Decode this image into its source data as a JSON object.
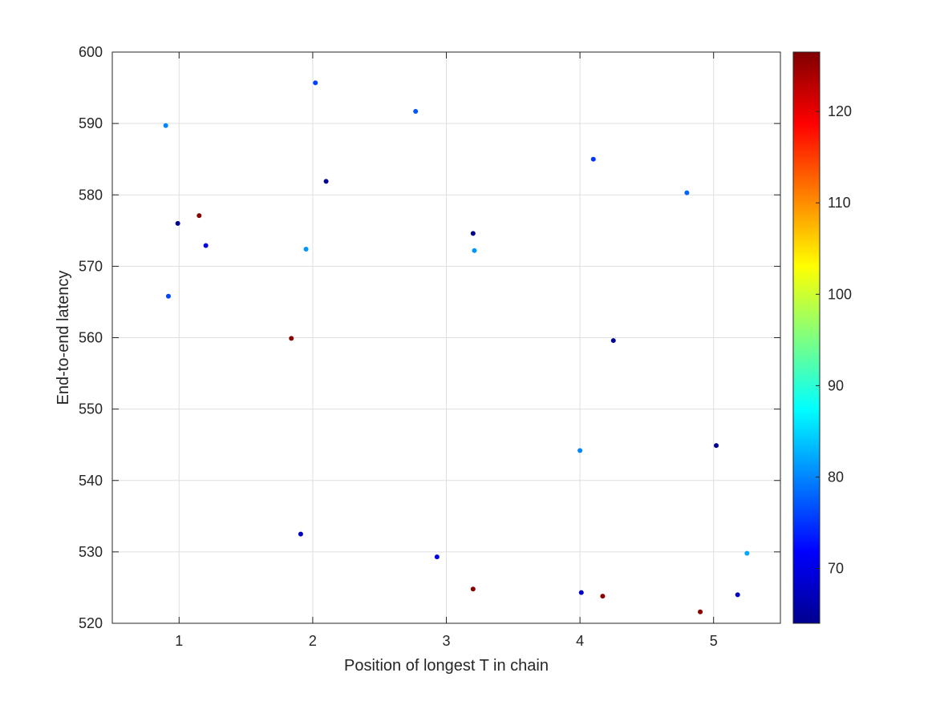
{
  "chart_data": {
    "type": "scatter",
    "title": "",
    "xlabel": "Position of longest T in chain",
    "ylabel": "End-to-end latency",
    "xlim": [
      0.5,
      5.5
    ],
    "ylim": [
      520,
      600
    ],
    "xticks": [
      1,
      2,
      3,
      4,
      5
    ],
    "yticks": [
      520,
      530,
      540,
      550,
      560,
      570,
      580,
      590,
      600
    ],
    "grid": true,
    "colorbar": {
      "colormap": "jet",
      "clim": [
        64,
        126.5
      ],
      "ticks": [
        70,
        80,
        90,
        100,
        110,
        120
      ]
    },
    "points": [
      {
        "x": 0.9,
        "y": 589.7,
        "c": 80
      },
      {
        "x": 0.92,
        "y": 565.8,
        "c": 76
      },
      {
        "x": 0.99,
        "y": 576.0,
        "c": 65
      },
      {
        "x": 1.15,
        "y": 577.1,
        "c": 126
      },
      {
        "x": 1.2,
        "y": 572.9,
        "c": 70
      },
      {
        "x": 1.84,
        "y": 559.9,
        "c": 126
      },
      {
        "x": 1.91,
        "y": 532.5,
        "c": 68
      },
      {
        "x": 1.95,
        "y": 572.4,
        "c": 81
      },
      {
        "x": 2.02,
        "y": 595.7,
        "c": 76
      },
      {
        "x": 2.1,
        "y": 581.9,
        "c": 65
      },
      {
        "x": 2.77,
        "y": 591.7,
        "c": 77
      },
      {
        "x": 2.93,
        "y": 529.3,
        "c": 70
      },
      {
        "x": 3.2,
        "y": 574.6,
        "c": 65
      },
      {
        "x": 3.2,
        "y": 524.8,
        "c": 126
      },
      {
        "x": 3.21,
        "y": 572.2,
        "c": 81
      },
      {
        "x": 4.0,
        "y": 544.2,
        "c": 80
      },
      {
        "x": 4.01,
        "y": 524.3,
        "c": 68
      },
      {
        "x": 4.1,
        "y": 585.0,
        "c": 75
      },
      {
        "x": 4.17,
        "y": 523.8,
        "c": 126
      },
      {
        "x": 4.25,
        "y": 559.6,
        "c": 65
      },
      {
        "x": 4.8,
        "y": 580.3,
        "c": 78
      },
      {
        "x": 4.9,
        "y": 521.6,
        "c": 126
      },
      {
        "x": 5.02,
        "y": 544.9,
        "c": 65
      },
      {
        "x": 5.18,
        "y": 524.0,
        "c": 68
      },
      {
        "x": 5.25,
        "y": 529.8,
        "c": 82
      }
    ]
  }
}
